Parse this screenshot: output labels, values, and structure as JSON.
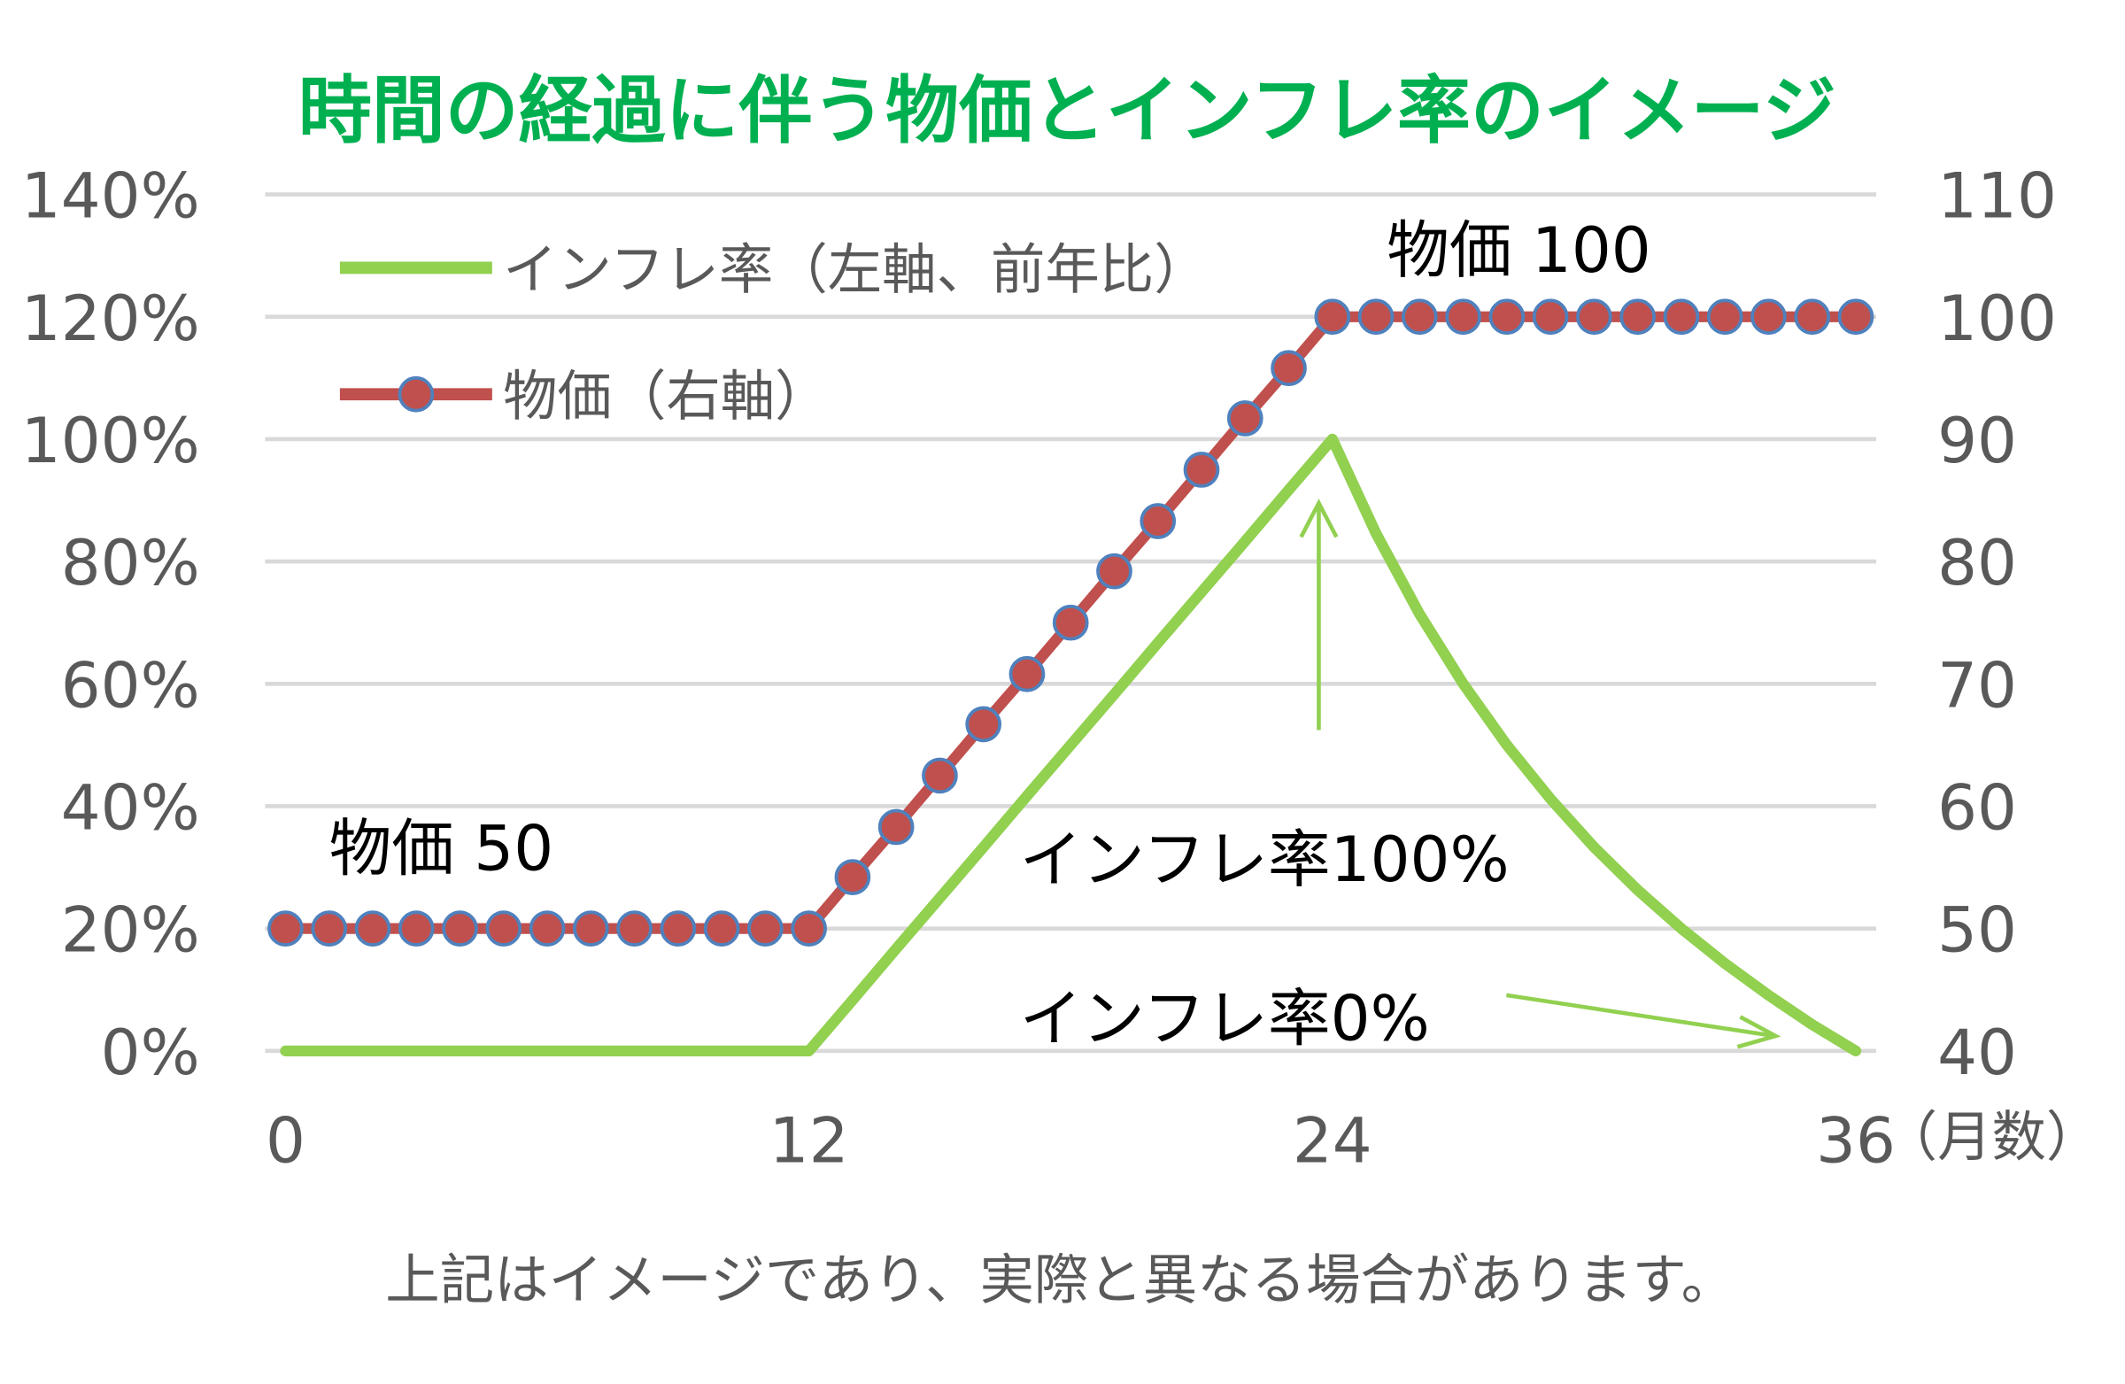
{
  "chart_data": {
    "type": "line",
    "title": "時間の経過に伴う物価とインフレ率のイメージ",
    "x": [
      0,
      1,
      2,
      3,
      4,
      5,
      6,
      7,
      8,
      9,
      10,
      11,
      12,
      13,
      14,
      15,
      16,
      17,
      18,
      19,
      20,
      21,
      22,
      23,
      24,
      25,
      26,
      27,
      28,
      29,
      30,
      31,
      32,
      33,
      34,
      35,
      36
    ],
    "x_ticks": [
      "0",
      "12",
      "24",
      "36"
    ],
    "x_unit": "（月数）",
    "xlim": [
      0,
      36
    ],
    "y_left_ticks": [
      "0%",
      "20%",
      "40%",
      "60%",
      "80%",
      "100%",
      "120%",
      "140%"
    ],
    "y_left_lim": [
      0,
      140
    ],
    "y_right_ticks": [
      "40",
      "50",
      "60",
      "70",
      "80",
      "90",
      "100",
      "110"
    ],
    "y_right_lim": [
      40,
      110
    ],
    "grid": true,
    "legend_position": "top-left",
    "series": [
      {
        "name": "インフレ率（左軸、前年比）",
        "axis": "left",
        "color": "#92d050",
        "values": [
          0,
          0,
          0,
          0,
          0,
          0,
          0,
          0,
          0,
          0,
          0,
          0,
          0,
          8.3,
          16.7,
          25,
          33.3,
          41.7,
          50,
          58.3,
          66.7,
          75,
          83.3,
          91.7,
          100,
          84.6,
          71.4,
          60,
          50,
          41.2,
          33.3,
          26.3,
          20,
          14.3,
          9.1,
          4.3,
          0
        ]
      },
      {
        "name": "物価（右軸）",
        "axis": "right",
        "color": "#c0504d",
        "marker_edge": "#4f81bd",
        "values": [
          50,
          50,
          50,
          50,
          50,
          50,
          50,
          50,
          50,
          50,
          50,
          50,
          50,
          54.2,
          58.3,
          62.5,
          66.7,
          70.8,
          75,
          79.2,
          83.3,
          87.5,
          91.7,
          95.8,
          100,
          100,
          100,
          100,
          100,
          100,
          100,
          100,
          100,
          100,
          100,
          100,
          100
        ]
      }
    ],
    "annotations": {
      "price_start": "物価 50",
      "price_end": "物価 100",
      "inflation_peak": "インフレ率100%",
      "inflation_zero": "インフレ率0%"
    },
    "note": "上記はイメージであり、実際と異なる場合があります。",
    "colors": {
      "title": "#00b050",
      "grid": "#d9d9d9",
      "axis_text": "#595959"
    }
  }
}
